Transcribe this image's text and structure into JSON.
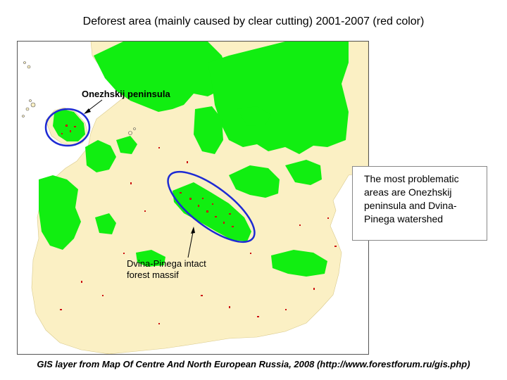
{
  "title": "Deforest area (mainly caused by clear cutting)  2001-2007 (red color)",
  "labels": {
    "onezhskij": "Onezhskij peninsula",
    "dvina_line1": "Dvina-Pinega intact",
    "dvina_line2": "forest massif"
  },
  "callout": {
    "text": "The most problematic areas are Onezhskij peninsula and Dvina-Pinega watershed"
  },
  "footer": "GIS layer from Map Of Centre And North European Russia, 2008 (http://www.forestforum.ru/gis.php)",
  "colors": {
    "region_fill": "#fbf0c4",
    "intact_forest": "#11ee11",
    "deforestation": "#cc1111",
    "highlight_ellipse": "#1d2ad4",
    "water": "#ffffff"
  }
}
